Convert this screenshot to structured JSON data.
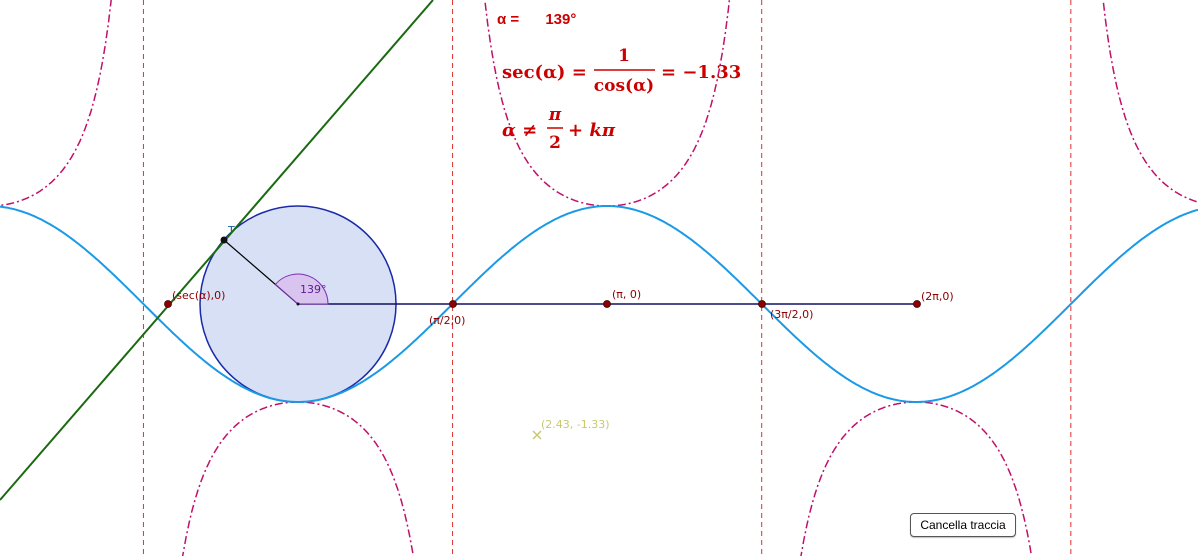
{
  "colors": {
    "sine_curve": "#1a9ae6",
    "secant_curve": "#c0106a",
    "asymptote": "#e03030",
    "tangent_line": "#1a6a10",
    "circle_fill": "#d8e0f5",
    "circle_stroke": "#1a2aa8",
    "axis_line": "#101060",
    "point": "#8b0000",
    "text_red": "#cc0000",
    "angle_arc": "#7b2fb0",
    "trace_label": "#c8c870"
  },
  "angle": {
    "label": "α =",
    "value": "139°",
    "arc_label": "139°"
  },
  "formulas": {
    "sec_lhs": "sec(α) =",
    "numerator": "1",
    "denominator": "cos(α)",
    "result": "= −1.33",
    "cond_lhs": "α ≠",
    "cond_num": "π",
    "cond_den": "2",
    "cond_rhs": "+ kπ"
  },
  "points": {
    "t_label": "T",
    "sec_point": "(sec(α),0)",
    "pi_half": "(π/2,0)",
    "pi": "(π, 0)",
    "three_pi_half": "(3π/2,0)",
    "two_pi": "(2π,0)",
    "trace": "(2.43, -1.33)"
  },
  "button": {
    "clear_trace": "Cancella traccia"
  }
}
